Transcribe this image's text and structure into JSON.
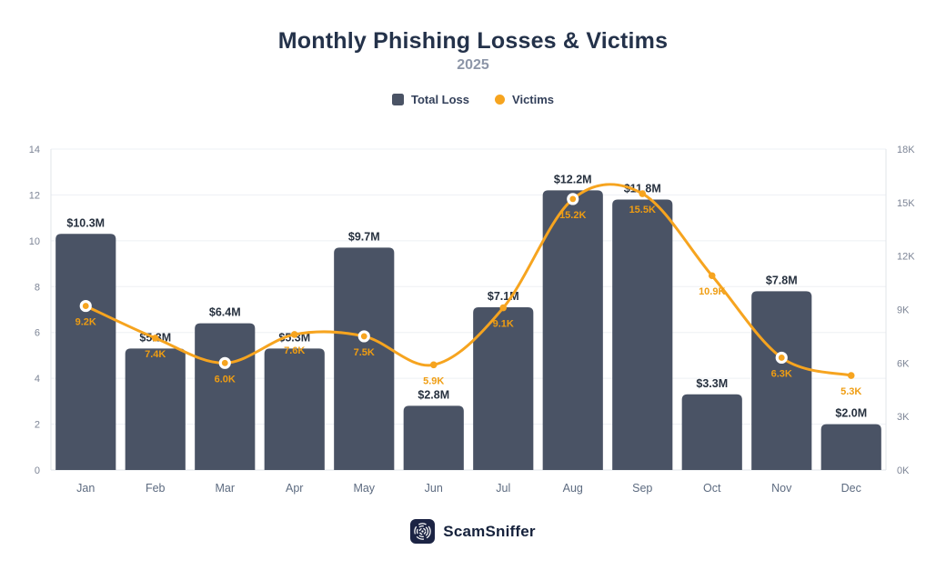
{
  "header": {
    "title": "Monthly Phishing Losses & Victims",
    "subtitle": "2025"
  },
  "legend": {
    "items": [
      {
        "label": "Total Loss",
        "shape": "square",
        "color": "#4a5365"
      },
      {
        "label": "Victims",
        "shape": "dot",
        "color": "#f6a41f"
      }
    ]
  },
  "chart_data": {
    "type": "combo-bar-line",
    "title": "Monthly Phishing Losses & Victims",
    "subtitle": "2025",
    "categories": [
      "Jan",
      "Feb",
      "Mar",
      "Apr",
      "May",
      "Jun",
      "Jul",
      "Aug",
      "Sep",
      "Oct",
      "Nov",
      "Dec"
    ],
    "series": [
      {
        "name": "Total Loss",
        "type": "bar",
        "axis": "left",
        "unit": "$M",
        "values": [
          10.3,
          5.3,
          6.4,
          5.3,
          9.7,
          2.8,
          7.1,
          12.2,
          11.8,
          3.3,
          7.8,
          2.0
        ],
        "labels": [
          "$10.3M",
          "$5.3M",
          "$6.4M",
          "$5.3M",
          "$9.7M",
          "$2.8M",
          "$7.1M",
          "$12.2M",
          "$11.8M",
          "$3.3M",
          "$7.8M",
          "$2.0M"
        ],
        "color": "#4a5365"
      },
      {
        "name": "Victims",
        "type": "line",
        "axis": "right",
        "unit": "K",
        "values": [
          9.2,
          7.4,
          6.0,
          7.6,
          7.5,
          5.9,
          9.1,
          15.2,
          15.5,
          10.9,
          6.3,
          5.3
        ],
        "labels": [
          "9.2K",
          "7.4K",
          "6.0K",
          "7.6K",
          "7.5K",
          "5.9K",
          "9.1K",
          "15.2K",
          "15.5K",
          "10.9K",
          "6.3K",
          "5.3K"
        ],
        "color": "#f6a41f",
        "emphasized_points": [
          0,
          2,
          4,
          7,
          10
        ]
      }
    ],
    "left_axis": {
      "min": 0,
      "max": 14,
      "ticks": [
        0,
        2,
        4,
        6,
        8,
        10,
        12,
        14
      ]
    },
    "right_axis": {
      "min": 0,
      "max": 18,
      "tick_values": [
        0,
        3,
        6,
        9,
        12,
        15,
        18
      ],
      "tick_labels": [
        "0K",
        "3K",
        "6K",
        "9K",
        "12K",
        "15K",
        "18K"
      ]
    },
    "grid": true,
    "legend_position": "top"
  },
  "colors": {
    "bar": "#4a5365",
    "line": "#f6a41f",
    "bar_label": "#27313f",
    "victims_label": "#ef9d12",
    "axis_tick": "#7d8596",
    "x_label": "#5d6b80",
    "gridline": "#eef0f4",
    "axis_line": "#e1e4ea",
    "title": "#24324a",
    "subtitle": "#8d96a8",
    "brand_bg": "#1c2444"
  },
  "footer": {
    "brand": "ScamSniffer"
  }
}
